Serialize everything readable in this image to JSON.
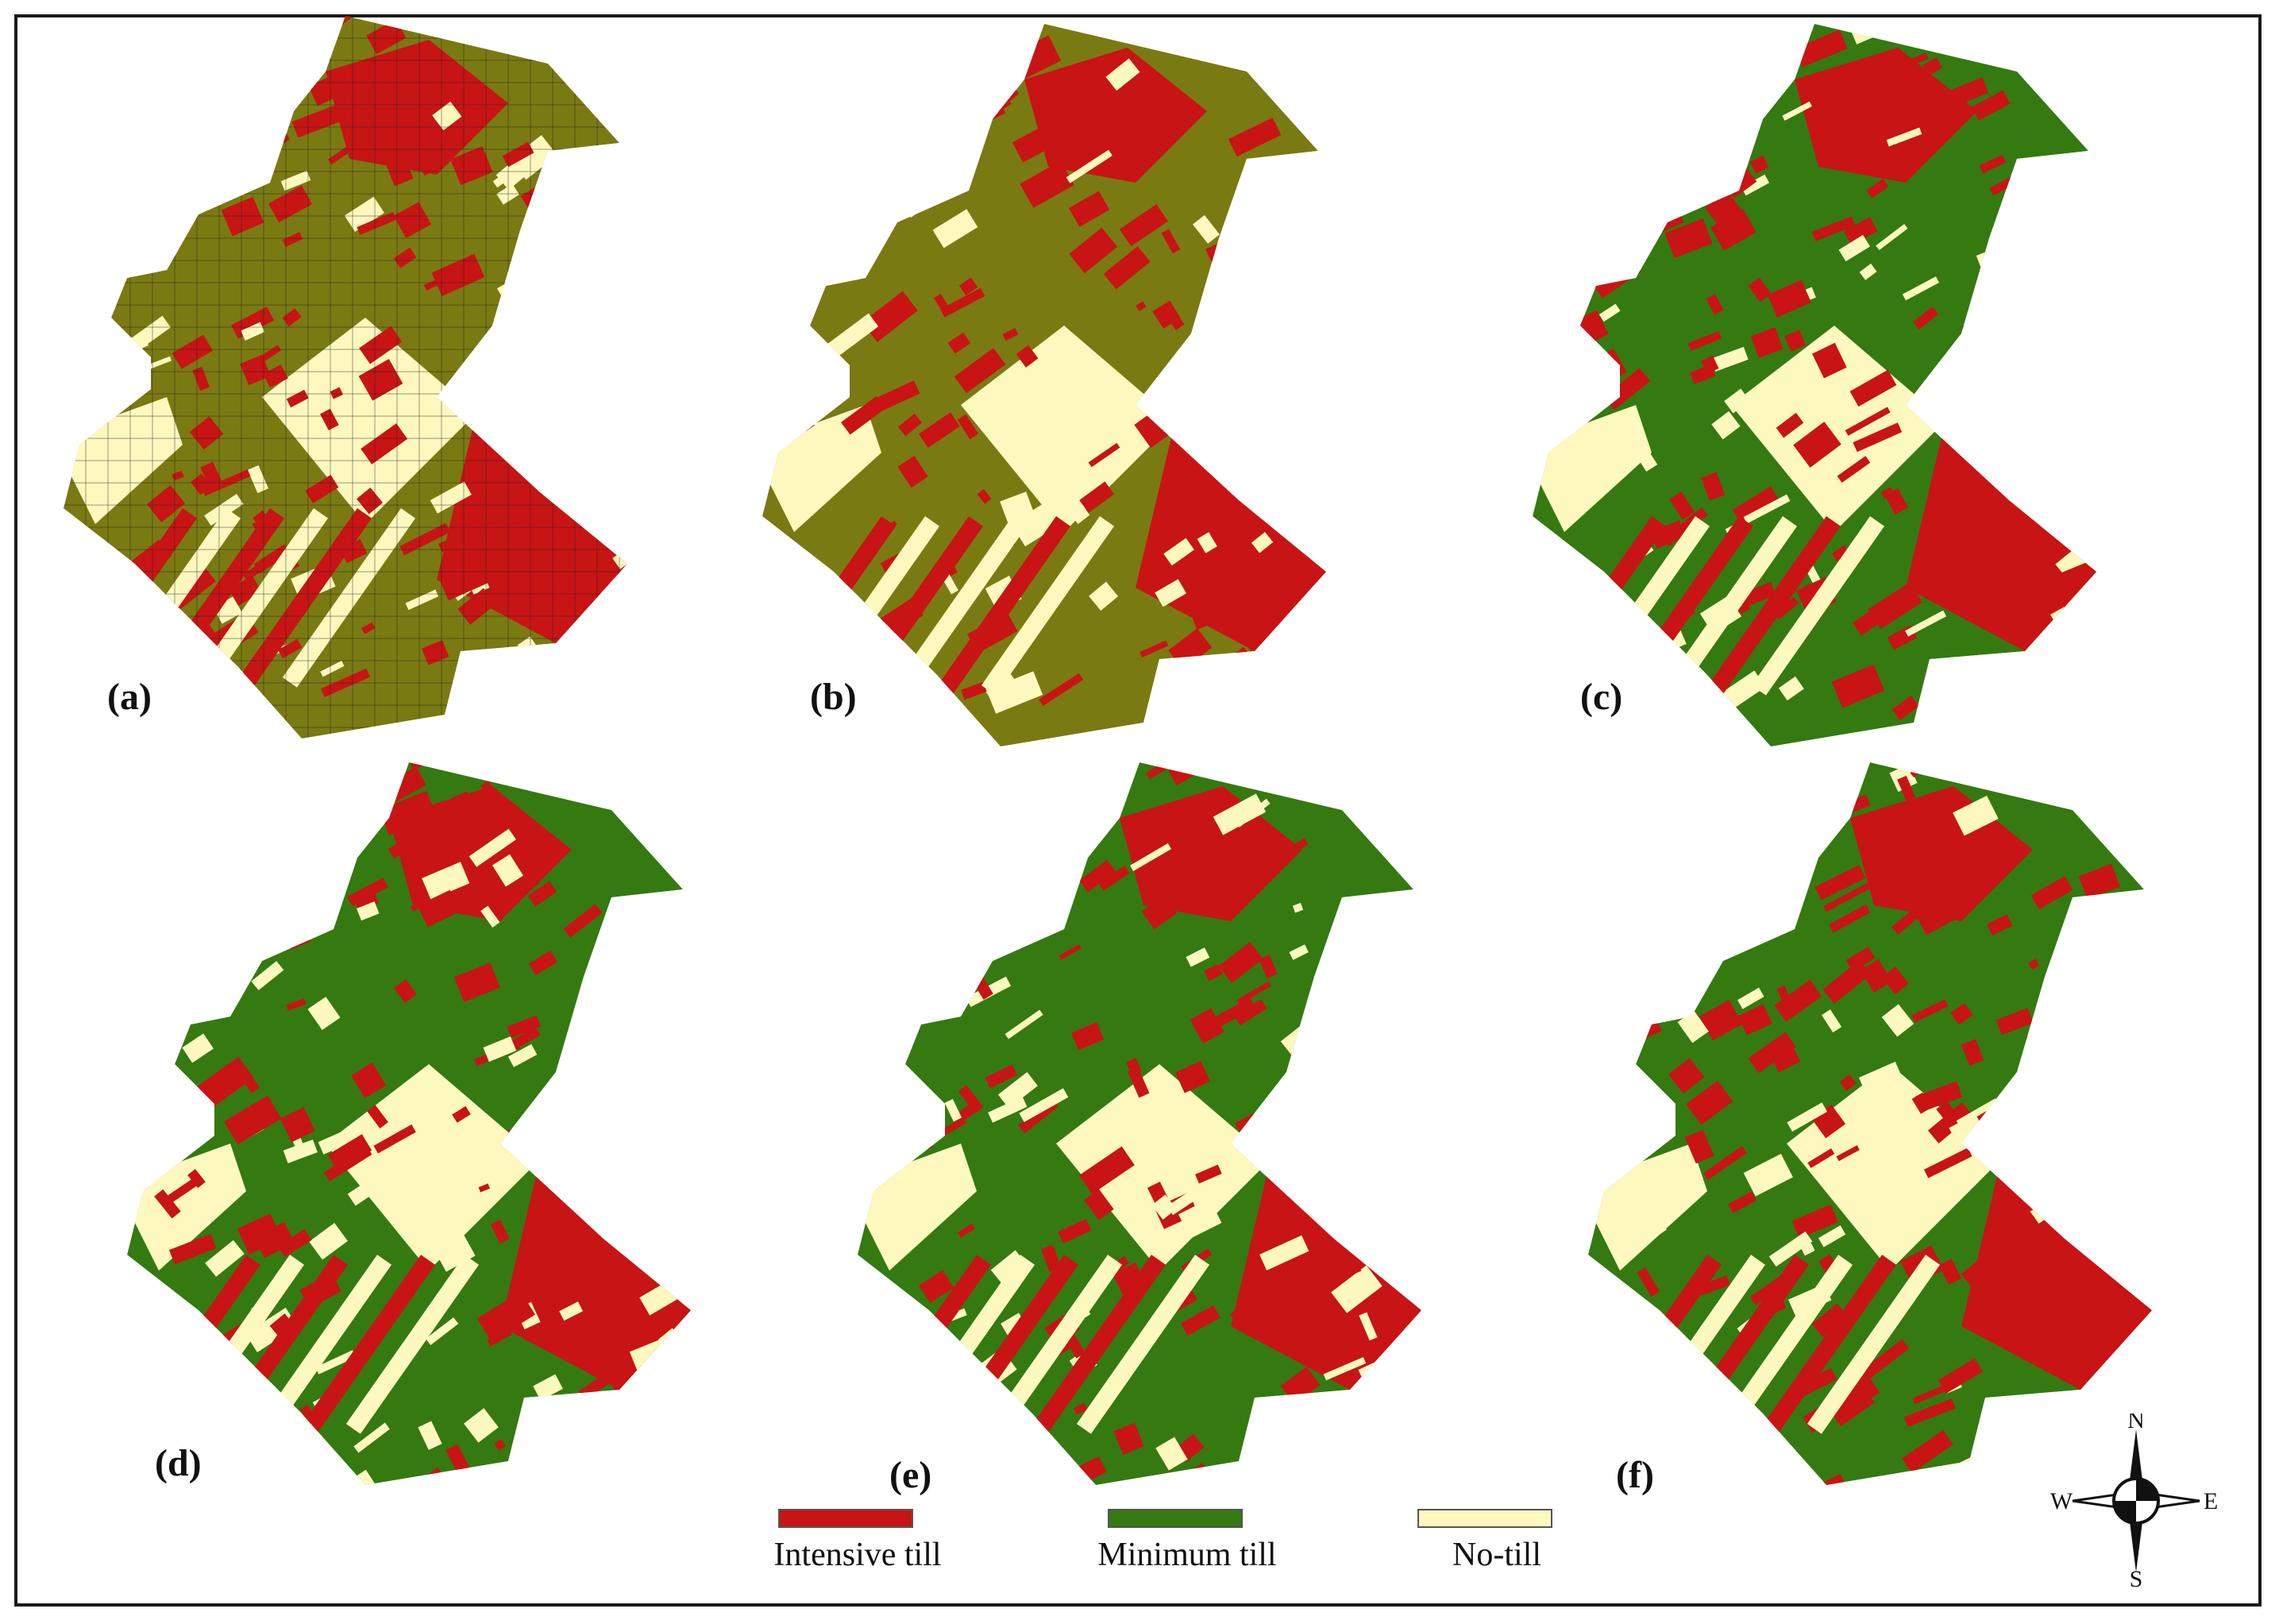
{
  "colors": {
    "intensive": "#c81414",
    "minimum_green": "#347a10",
    "minimum_olive": "#7a7a12",
    "notill": "#fcf8be"
  },
  "panels": [
    {
      "label": "(a)",
      "minimum_color": "olive",
      "gridded": true
    },
    {
      "label": "(b)",
      "minimum_color": "olive",
      "gridded": false
    },
    {
      "label": "(c)",
      "minimum_color": "green",
      "gridded": false
    },
    {
      "label": "(d)",
      "minimum_color": "green",
      "gridded": false
    },
    {
      "label": "(e)",
      "minimum_color": "green",
      "gridded": false
    },
    {
      "label": "(f)",
      "minimum_color": "green",
      "gridded": false
    }
  ],
  "legend": [
    {
      "label": "Intensive till",
      "color": "#c81414"
    },
    {
      "label": "Minimum till",
      "color": "#347a10"
    },
    {
      "label": "No-till",
      "color": "#fcf8be"
    }
  ],
  "compass": {
    "n": "N",
    "s": "S",
    "e": "E",
    "w": "W",
    "icon": "north-arrow-compass-icon"
  }
}
